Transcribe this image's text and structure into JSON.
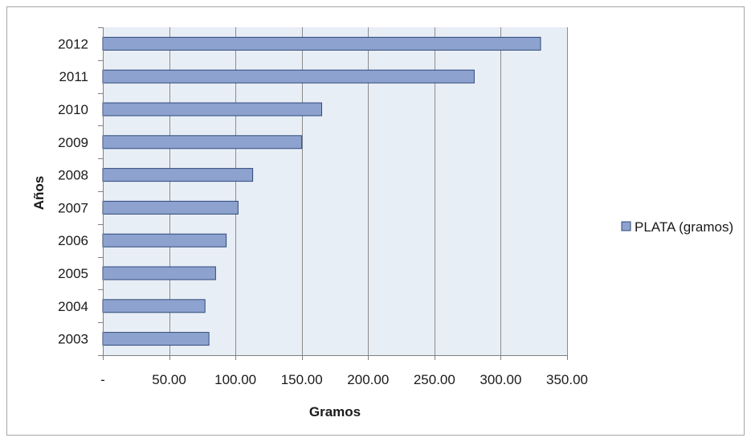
{
  "chart_data": {
    "type": "bar",
    "orientation": "horizontal",
    "title": "",
    "xlabel": "Gramos",
    "ylabel": "Años",
    "categories": [
      "2003",
      "2004",
      "2005",
      "2006",
      "2007",
      "2008",
      "2009",
      "2010",
      "2011",
      "2012"
    ],
    "series": [
      {
        "name": "PLATA (gramos)",
        "values": [
          80,
          77,
          85,
          93,
          102,
          113,
          150,
          165,
          280,
          330
        ],
        "color": "#8ea2cf"
      }
    ],
    "xlim": [
      0,
      350
    ],
    "x_ticks": [
      0,
      50,
      100,
      150,
      200,
      250,
      300,
      350
    ],
    "x_tick_labels": [
      "-",
      "50.00",
      "100.00",
      "150.00",
      "200.00",
      "250.00",
      "300.00",
      "350.00"
    ],
    "grid": "vertical",
    "legend_position": "right",
    "plot_background": "#e8eef6",
    "bar_border": "#2f4a7a",
    "grid_color": "#8c8c8c"
  }
}
